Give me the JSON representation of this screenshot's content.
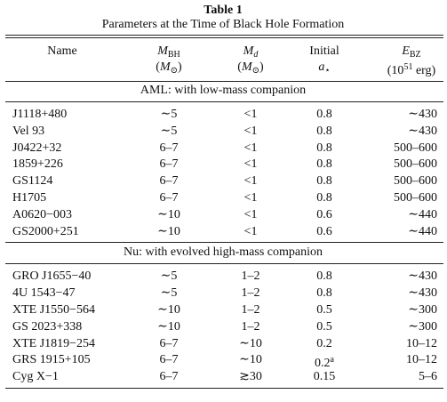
{
  "title": "Table 1",
  "subtitle": "Parameters at the Time of Black Hole Formation",
  "header": [
    {
      "lines": [
        [
          {
            "text": "Name",
            "style": "plain"
          }
        ]
      ]
    },
    {
      "lines": [
        [
          {
            "text": "M",
            "style": "italic"
          },
          {
            "text": "BH",
            "style": "sub"
          }
        ],
        [
          {
            "text": "(",
            "style": "plain"
          },
          {
            "text": "M",
            "style": "italic"
          },
          {
            "text": "⊙",
            "style": "sub"
          },
          {
            "text": ")",
            "style": "plain"
          }
        ]
      ]
    },
    {
      "lines": [
        [
          {
            "text": "M",
            "style": "italic"
          },
          {
            "text": "d",
            "style": "italic-sub"
          }
        ],
        [
          {
            "text": "(",
            "style": "plain"
          },
          {
            "text": "M",
            "style": "italic"
          },
          {
            "text": "⊙",
            "style": "sub"
          },
          {
            "text": ")",
            "style": "plain"
          }
        ]
      ]
    },
    {
      "lines": [
        [
          {
            "text": "Initial",
            "style": "plain"
          }
        ],
        [
          {
            "text": "a",
            "style": "italic"
          },
          {
            "text": "⋆",
            "style": "sub"
          }
        ]
      ]
    },
    {
      "lines": [
        [
          {
            "text": "E",
            "style": "italic"
          },
          {
            "text": "BZ",
            "style": "sub"
          }
        ],
        [
          {
            "text": "(10",
            "style": "plain"
          },
          {
            "text": "51",
            "style": "sup"
          },
          {
            "text": " erg)",
            "style": "plain"
          }
        ]
      ]
    }
  ],
  "sections": [
    {
      "label": "AML: with low-mass companion",
      "rows": [
        [
          "J1118+480",
          "∼5",
          "<1",
          "0.8",
          "∼430"
        ],
        [
          "Vel 93",
          "∼5",
          "<1",
          "0.8",
          "∼430"
        ],
        [
          "J0422+32",
          "6–7",
          "<1",
          "0.8",
          "500–600"
        ],
        [
          "1859+226",
          "6–7",
          "<1",
          "0.8",
          "500–600"
        ],
        [
          "GS1124",
          "6–7",
          "<1",
          "0.8",
          "500–600"
        ],
        [
          "H1705",
          "6–7",
          "<1",
          "0.8",
          "500–600"
        ],
        [
          "A0620−003",
          "∼10",
          "<1",
          "0.6",
          "∼440"
        ],
        [
          "GS2000+251",
          "∼10",
          "<1",
          "0.6",
          "∼440"
        ]
      ]
    },
    {
      "label": "Nu: with evolved high-mass companion",
      "rows": [
        [
          "GRO J1655−40",
          "∼5",
          "1–2",
          "0.8",
          "∼430"
        ],
        [
          "4U 1543−47",
          "∼5",
          "1–2",
          "0.8",
          "∼430"
        ],
        [
          "XTE J1550−564",
          "∼10",
          "1–2",
          "0.5",
          "∼300"
        ],
        [
          "GS 2023+338",
          "∼10",
          "1–2",
          "0.5",
          "∼300"
        ],
        [
          "XTE J1819−254",
          "6–7",
          "∼10",
          "0.2",
          "10–12"
        ],
        [
          "GRS 1915+105",
          "6–7",
          "∼10",
          {
            "text": "0.2",
            "sup": "a"
          },
          "10–12"
        ],
        [
          "Cyg X−1",
          "6–7",
          "≳30",
          "0.15",
          "5–6"
        ]
      ]
    }
  ]
}
